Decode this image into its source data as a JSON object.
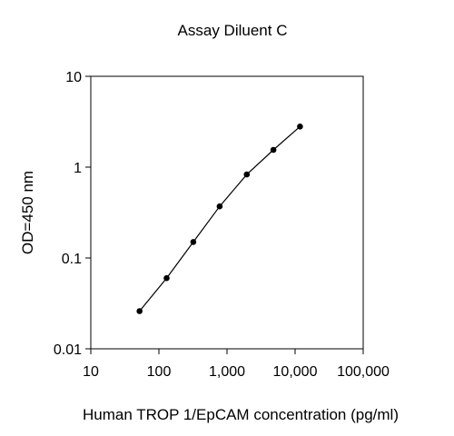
{
  "chart_data": {
    "type": "line",
    "title": "Assay Diluent C",
    "xlabel": "Human TROP 1/EpCAM concentration (pg/ml)",
    "ylabel": "OD=450 nm",
    "x_scale": "log",
    "y_scale": "log",
    "xlim": [
      10,
      100000
    ],
    "ylim": [
      0.01,
      10
    ],
    "x_ticks": [
      10,
      100,
      1000,
      10000,
      100000
    ],
    "x_tick_labels": [
      "10",
      "100",
      "1,000",
      "10,000",
      "100,000"
    ],
    "y_ticks": [
      0.01,
      0.1,
      1,
      10
    ],
    "y_tick_labels": [
      "0.01",
      "0.1",
      "1",
      "10"
    ],
    "grid": false,
    "legend": "none",
    "series": [
      {
        "x": [
          52,
          130,
          320,
          780,
          1950,
          4800,
          11800
        ],
        "y": [
          0.026,
          0.06,
          0.15,
          0.37,
          0.83,
          1.55,
          2.8
        ]
      }
    ]
  }
}
